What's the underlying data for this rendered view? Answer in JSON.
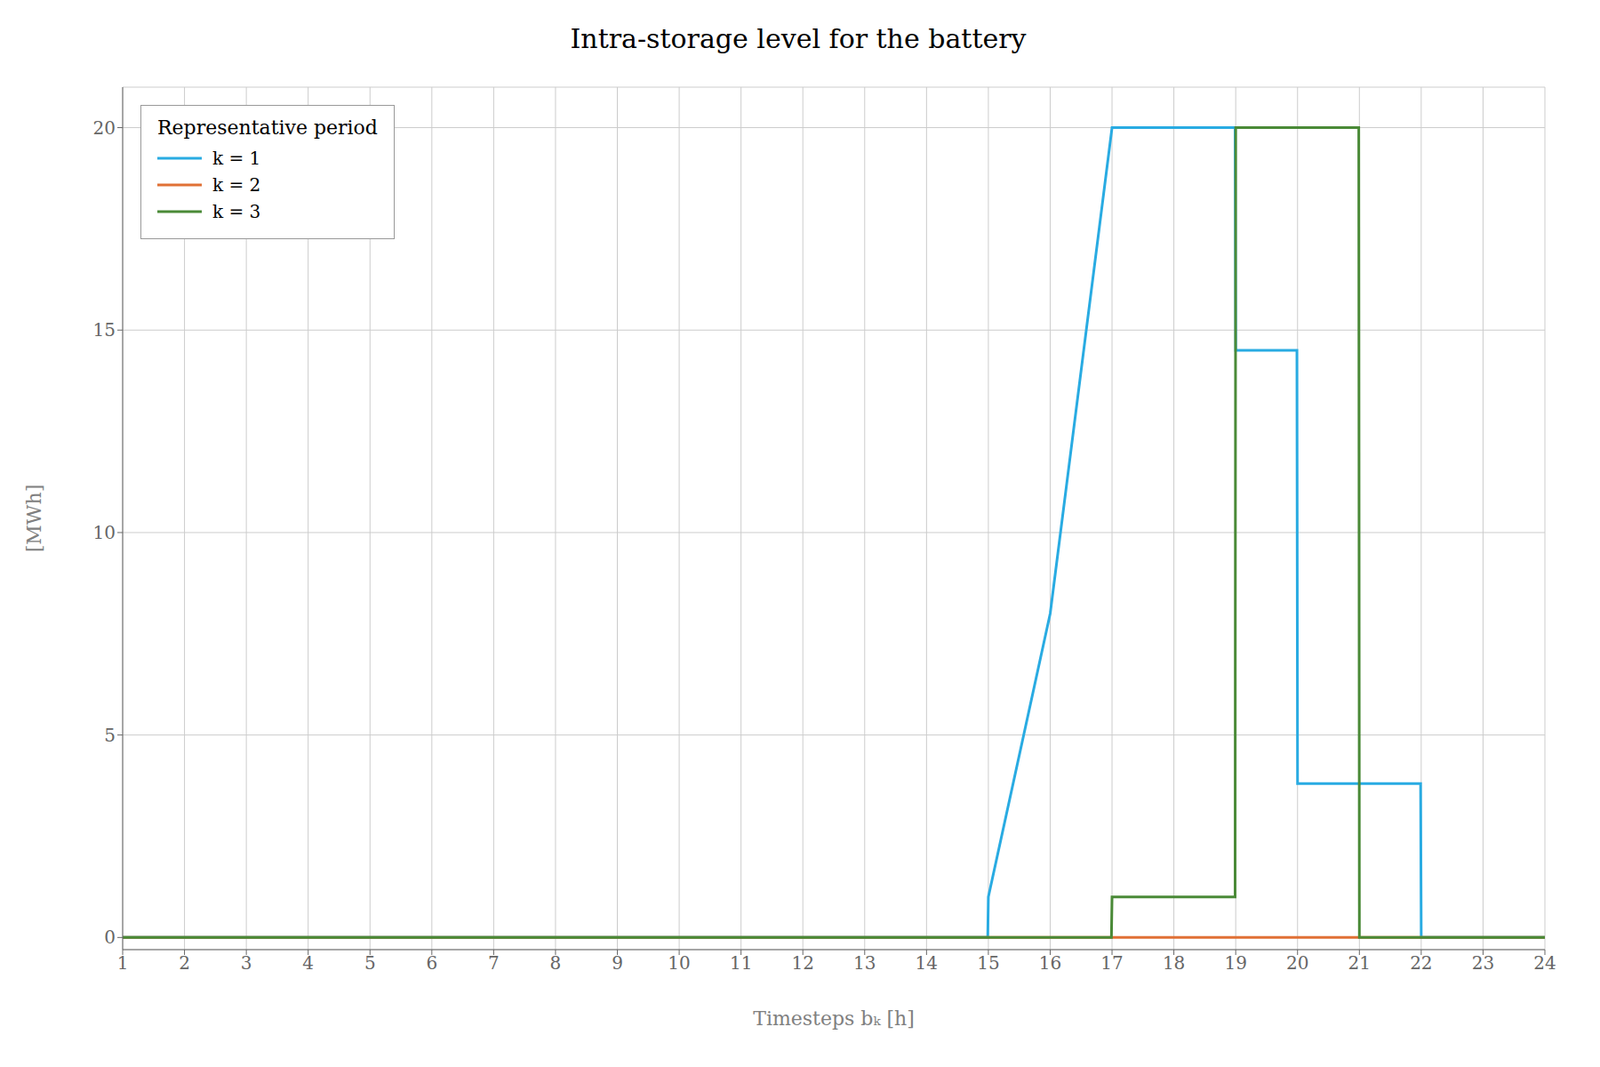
{
  "chart_data": {
    "type": "line",
    "title": "Intra-storage level for the battery",
    "x_label": "Timesteps bₖ [h]",
    "y_label": "[MWh]",
    "xlim": [
      1,
      24
    ],
    "ylim": [
      -0.3,
      21
    ],
    "xticks": [
      1,
      2,
      3,
      4,
      5,
      6,
      7,
      8,
      9,
      10,
      11,
      12,
      13,
      14,
      15,
      16,
      17,
      18,
      19,
      20,
      21,
      22,
      23,
      24
    ],
    "yticks": [
      0,
      5,
      10,
      15,
      20
    ],
    "grid": true,
    "legend": "upper left",
    "legend_title": "Representative period",
    "series": [
      {
        "name": "k = 1",
        "color": "#29ABE2",
        "x": [
          1,
          2,
          3,
          4,
          5,
          6,
          7,
          8,
          9,
          10,
          11,
          12,
          13,
          14,
          14.99,
          15,
          16,
          17,
          18,
          18.99,
          19,
          19.99,
          20,
          20.99,
          21,
          21.99,
          22,
          23,
          24
        ],
        "values": [
          0,
          0,
          0,
          0,
          0,
          0,
          0,
          0,
          0,
          0,
          0,
          0,
          0,
          0,
          0,
          1,
          8,
          20,
          20,
          20,
          14.5,
          14.5,
          3.8,
          3.8,
          3.8,
          3.8,
          0,
          0,
          0
        ]
      },
      {
        "name": "k = 2",
        "color": "#E07035",
        "x": [
          1,
          2,
          3,
          4,
          5,
          6,
          7,
          8,
          9,
          10,
          11,
          12,
          13,
          14,
          15,
          16,
          17,
          18,
          19,
          20,
          21,
          22,
          23,
          24
        ],
        "values": [
          0,
          0,
          0,
          0,
          0,
          0,
          0,
          0,
          0,
          0,
          0,
          0,
          0,
          0,
          0,
          0,
          0,
          0,
          0,
          0,
          0,
          0,
          0,
          0
        ]
      },
      {
        "name": "k = 3",
        "color": "#4A8A37",
        "x": [
          1,
          2,
          3,
          4,
          5,
          6,
          7,
          8,
          9,
          10,
          11,
          12,
          13,
          14,
          15,
          16,
          16.99,
          17,
          18,
          18.99,
          19,
          19.99,
          20,
          20.99,
          21,
          22,
          23,
          24
        ],
        "values": [
          0,
          0,
          0,
          0,
          0,
          0,
          0,
          0,
          0,
          0,
          0,
          0,
          0,
          0,
          0,
          0,
          0,
          1,
          1,
          1,
          20,
          20,
          20,
          20,
          0,
          0,
          0,
          0
        ]
      }
    ]
  }
}
